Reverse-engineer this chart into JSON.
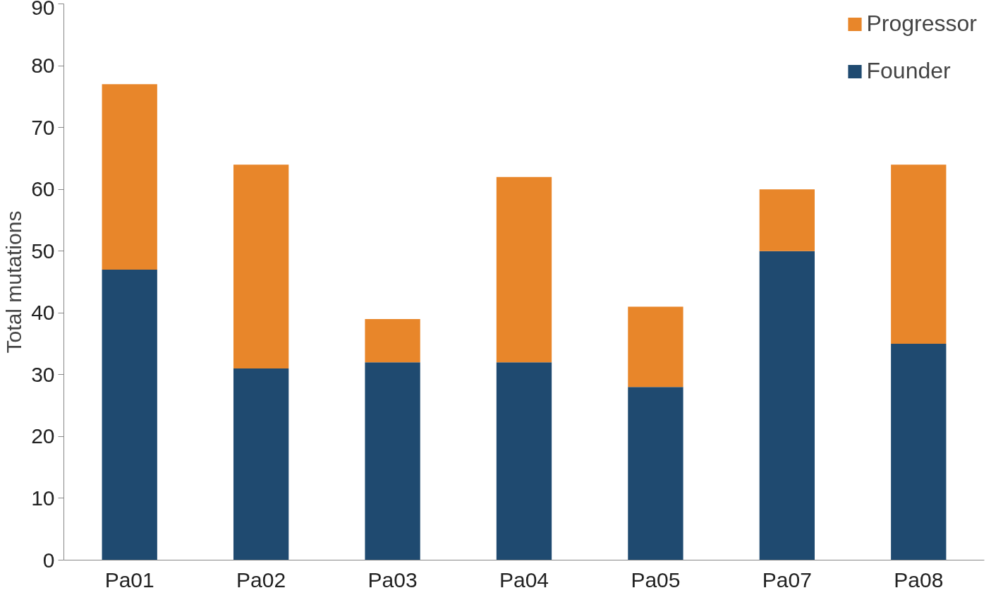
{
  "chart_data": {
    "type": "bar",
    "stacked": true,
    "ylabel": "Total mutations",
    "categories": [
      "Pa01",
      "Pa02",
      "Pa03",
      "Pa04",
      "Pa05",
      "Pa07",
      "Pa08"
    ],
    "series": [
      {
        "name": "Founder",
        "color": "#1f4a70",
        "values": [
          47,
          31,
          32,
          32,
          28,
          50,
          35
        ]
      },
      {
        "name": "Progressor",
        "color": "#e8862a",
        "values": [
          30,
          33,
          7,
          30,
          13,
          10,
          29
        ]
      }
    ],
    "ylim": [
      0,
      90
    ],
    "yticks": [
      0,
      10,
      20,
      30,
      40,
      50,
      60,
      70,
      80,
      90
    ],
    "grid": false,
    "legend": "top right"
  }
}
